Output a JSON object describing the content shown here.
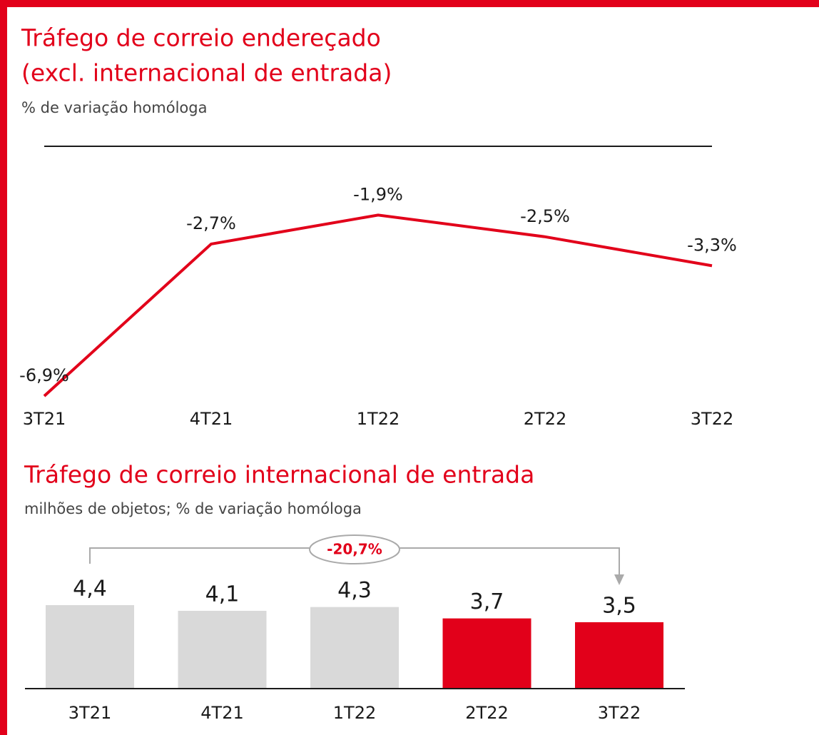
{
  "chart_data": [
    {
      "type": "line",
      "title": [
        "Tráfego de correio endereçado",
        "(excl. internacional de entrada)"
      ],
      "subtitle": "% de variação homóloga",
      "categories": [
        "3T21",
        "4T21",
        "1T22",
        "2T22",
        "3T22"
      ],
      "values": [
        -6.9,
        -2.7,
        -1.9,
        -2.5,
        -3.3
      ],
      "value_labels": [
        "-6,9%",
        "-2,7%",
        "-1,9%",
        "-2,5%",
        "-3,3%"
      ],
      "color": "#e2001a"
    },
    {
      "type": "bar",
      "title": "Tráfego de correio internacional de entrada",
      "subtitle": "milhões de objetos; % de variação homóloga",
      "categories": [
        "3T21",
        "4T21",
        "1T22",
        "2T22",
        "3T22"
      ],
      "values": [
        4.4,
        4.1,
        4.3,
        3.7,
        3.5
      ],
      "value_labels": [
        "4,4",
        "4,1",
        "4,3",
        "3,7",
        "3,5"
      ],
      "colors": [
        "#d9d9d9",
        "#d9d9d9",
        "#d9d9d9",
        "#e2001a",
        "#e2001a"
      ],
      "annotation": "-20,7%"
    }
  ]
}
